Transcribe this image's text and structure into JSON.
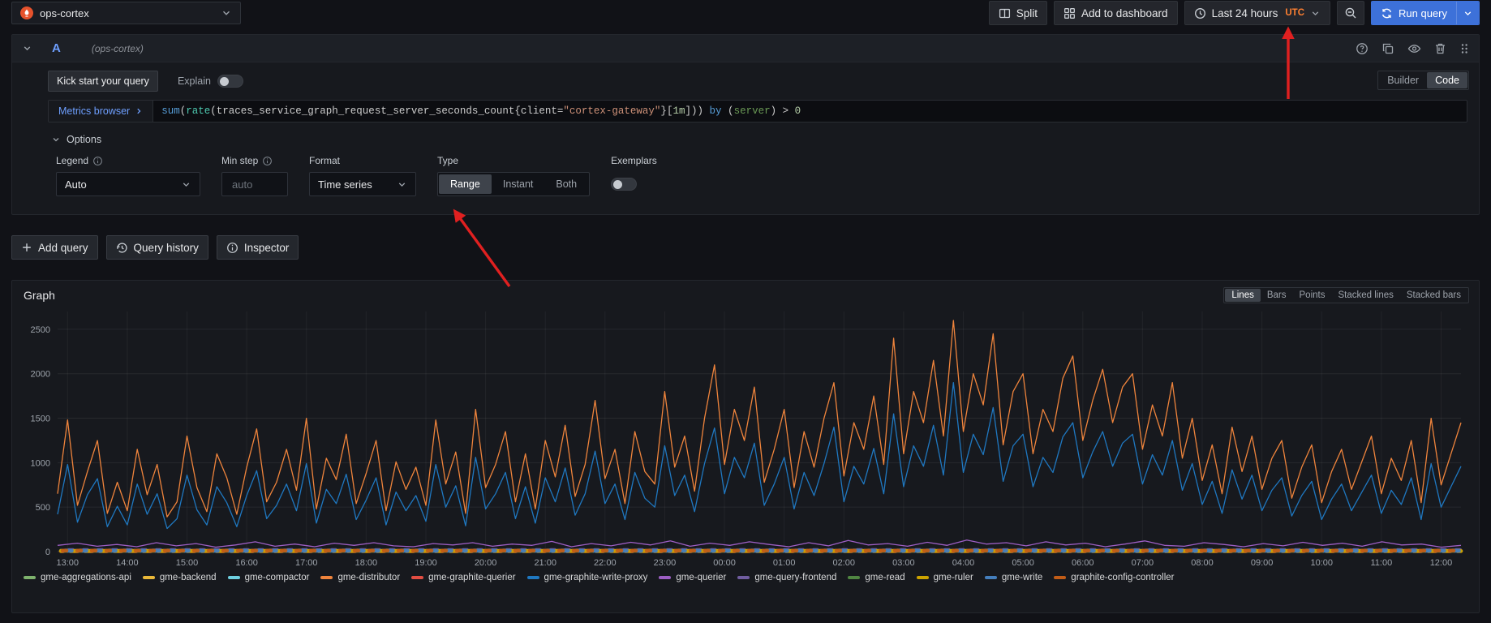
{
  "topbar": {
    "datasource": "ops-cortex",
    "split_label": "Split",
    "add_to_dashboard_label": "Add to dashboard",
    "time_range": "Last 24 hours",
    "timezone": "UTC",
    "run_query_label": "Run query"
  },
  "query_editor": {
    "ref_id": "A",
    "datasource_hint": "(ops-cortex)",
    "kick_start_label": "Kick start your query",
    "explain_label": "Explain",
    "builder_label": "Builder",
    "code_label": "Code",
    "metrics_browser_label": "Metrics browser",
    "query_tokens": [
      {
        "t": "sum",
        "c": "fn"
      },
      {
        "t": "(",
        "c": "p"
      },
      {
        "t": "rate",
        "c": "fn2"
      },
      {
        "t": "(",
        "c": "p"
      },
      {
        "t": "traces_service_graph_request_server_seconds_count",
        "c": "p"
      },
      {
        "t": "{",
        "c": "p"
      },
      {
        "t": "client",
        "c": "p"
      },
      {
        "t": "=",
        "c": "p"
      },
      {
        "t": "\"cortex-gateway\"",
        "c": "str"
      },
      {
        "t": "}",
        "c": "p"
      },
      {
        "t": "[",
        "c": "p"
      },
      {
        "t": "1m",
        "c": "num"
      },
      {
        "t": "]",
        "c": "p"
      },
      {
        "t": "))",
        "c": "p"
      },
      {
        "t": " ",
        "c": "p"
      },
      {
        "t": "by",
        "c": "fn"
      },
      {
        "t": " ",
        "c": "p"
      },
      {
        "t": "(",
        "c": "p"
      },
      {
        "t": "server",
        "c": "lbl"
      },
      {
        "t": ")",
        "c": "p"
      },
      {
        "t": " > ",
        "c": "p"
      },
      {
        "t": "0",
        "c": "num"
      }
    ],
    "options": {
      "title": "Options",
      "legend_label": "Legend",
      "legend_value": "Auto",
      "min_step_label": "Min step",
      "min_step_placeholder": "auto",
      "format_label": "Format",
      "format_value": "Time series",
      "type_label": "Type",
      "type_options": [
        "Range",
        "Instant",
        "Both"
      ],
      "type_selected": "Range",
      "exemplars_label": "Exemplars"
    }
  },
  "actions": {
    "add_query_label": "Add query",
    "query_history_label": "Query history",
    "inspector_label": "Inspector"
  },
  "graph_panel": {
    "title": "Graph",
    "display_modes": [
      "Lines",
      "Bars",
      "Points",
      "Stacked lines",
      "Stacked bars"
    ],
    "selected_mode": "Lines"
  },
  "icons": [
    "prometheus-logo",
    "split",
    "apps-grid",
    "clock",
    "chevron-down",
    "zoom-out",
    "sync",
    "help-circle",
    "copy",
    "eye",
    "trash",
    "drag-handle",
    "plus",
    "history",
    "info-circle"
  ],
  "chart_data": {
    "type": "line",
    "title": "Graph",
    "grid": true,
    "legend_position": "bottom",
    "ylim": [
      0,
      2700
    ],
    "yticks": [
      0,
      500,
      1000,
      1500,
      2000,
      2500
    ],
    "xticks": [
      "13:00",
      "14:00",
      "15:00",
      "16:00",
      "17:00",
      "18:00",
      "19:00",
      "20:00",
      "21:00",
      "22:00",
      "23:00",
      "00:00",
      "01:00",
      "02:00",
      "03:00",
      "04:00",
      "05:00",
      "06:00",
      "07:00",
      "08:00",
      "09:00",
      "10:00",
      "11:00",
      "12:00"
    ],
    "x_note": "24h window, points every 10 min (main series) starting 12:50",
    "series": [
      {
        "name": "gme-distributor",
        "color": "#EF843C",
        "values": [
          650,
          1480,
          520,
          900,
          1250,
          430,
          780,
          460,
          1150,
          640,
          980,
          390,
          560,
          1300,
          720,
          450,
          1100,
          830,
          420,
          950,
          1380,
          560,
          780,
          1150,
          690,
          1500,
          480,
          1050,
          810,
          1320,
          540,
          880,
          1250,
          460,
          1010,
          700,
          950,
          520,
          1480,
          760,
          1120,
          430,
          1600,
          720,
          980,
          1350,
          560,
          1100,
          480,
          1250,
          840,
          1420,
          620,
          980,
          1700,
          820,
          1150,
          540,
          1350,
          900,
          760,
          1800,
          950,
          1300,
          680,
          1500,
          2100,
          980,
          1600,
          1250,
          1850,
          780,
          1150,
          1600,
          720,
          1350,
          950,
          1500,
          1900,
          850,
          1450,
          1150,
          1750,
          980,
          2400,
          1100,
          1800,
          1450,
          2150,
          1300,
          2600,
          1350,
          2000,
          1650,
          2450,
          1200,
          1800,
          2000,
          1100,
          1600,
          1350,
          1950,
          2200,
          1250,
          1700,
          2050,
          1450,
          1850,
          2000,
          1150,
          1650,
          1300,
          1900,
          1050,
          1500,
          800,
          1200,
          650,
          1400,
          900,
          1300,
          700,
          1050,
          1250,
          600,
          950,
          1200,
          550,
          900,
          1150,
          700,
          1000,
          1300,
          650,
          1050,
          800,
          1250,
          550,
          1500,
          750,
          1100,
          1450
        ]
      },
      {
        "name": "gme-graphite-write-proxy",
        "color": "#1F78C1",
        "values": [
          420,
          980,
          330,
          640,
          820,
          280,
          510,
          300,
          760,
          420,
          650,
          260,
          370,
          860,
          470,
          300,
          730,
          550,
          280,
          630,
          910,
          370,
          520,
          760,
          460,
          990,
          320,
          700,
          540,
          870,
          360,
          580,
          830,
          300,
          670,
          460,
          630,
          340,
          980,
          500,
          740,
          290,
          1060,
          480,
          650,
          890,
          370,
          730,
          320,
          830,
          560,
          940,
          410,
          650,
          1130,
          540,
          760,
          360,
          890,
          600,
          500,
          1190,
          630,
          860,
          450,
          990,
          1390,
          650,
          1060,
          830,
          1220,
          520,
          760,
          1060,
          480,
          890,
          630,
          990,
          1400,
          560,
          960,
          760,
          1160,
          650,
          1550,
          730,
          1190,
          960,
          1420,
          860,
          1900,
          890,
          1320,
          1090,
          1620,
          790,
          1190,
          1320,
          730,
          1060,
          890,
          1290,
          1450,
          830,
          1120,
          1350,
          960,
          1220,
          1320,
          760,
          1090,
          860,
          1250,
          690,
          990,
          530,
          790,
          430,
          920,
          590,
          860,
          460,
          690,
          830,
          400,
          630,
          790,
          360,
          590,
          760,
          460,
          660,
          860,
          430,
          690,
          530,
          830,
          360,
          990,
          500,
          730,
          960
        ]
      },
      {
        "name": "gme-querier",
        "color": "#9D5FC4",
        "values": [
          70,
          95,
          60,
          80,
          55,
          100,
          65,
          90,
          50,
          75,
          110,
          60,
          85,
          55,
          95,
          70,
          100,
          65,
          55,
          90,
          75,
          100,
          60,
          85,
          70,
          115,
          55,
          90,
          65,
          105,
          75,
          120,
          60,
          95,
          70,
          110,
          80,
          55,
          100,
          65,
          125,
          75,
          90,
          60,
          105,
          70,
          130,
          85,
          100,
          65,
          110,
          75,
          95,
          55,
          85,
          120,
          70,
          60,
          100,
          80,
          55,
          90,
          65,
          105,
          70,
          95,
          60,
          110,
          75,
          85,
          50,
          70
        ]
      }
    ],
    "baseline_series": [
      {
        "name": "gme-aggregations-api",
        "color": "#7EB26D",
        "value": 10
      },
      {
        "name": "gme-backend",
        "color": "#EAB839",
        "value": 6
      },
      {
        "name": "gme-compactor",
        "color": "#6ED0E0",
        "value": 12
      },
      {
        "name": "gme-graphite-querier",
        "color": "#E24D42",
        "value": 5
      },
      {
        "name": "gme-query-frontend",
        "color": "#705DA0",
        "value": 18
      },
      {
        "name": "gme-read",
        "color": "#508642",
        "value": 8
      },
      {
        "name": "gme-ruler",
        "color": "#CCA300",
        "value": 7
      },
      {
        "name": "gme-write",
        "color": "#447EBC",
        "value": 9
      },
      {
        "name": "graphite-config-controller",
        "color": "#C15C17",
        "value": 11
      }
    ],
    "legend": [
      {
        "name": "gme-aggregations-api",
        "color": "#7EB26D"
      },
      {
        "name": "gme-backend",
        "color": "#EAB839"
      },
      {
        "name": "gme-compactor",
        "color": "#6ED0E0"
      },
      {
        "name": "gme-distributor",
        "color": "#EF843C"
      },
      {
        "name": "gme-graphite-querier",
        "color": "#E24D42"
      },
      {
        "name": "gme-graphite-write-proxy",
        "color": "#1F78C1"
      },
      {
        "name": "gme-querier",
        "color": "#9D5FC4"
      },
      {
        "name": "gme-query-frontend",
        "color": "#705DA0"
      },
      {
        "name": "gme-read",
        "color": "#508642"
      },
      {
        "name": "gme-ruler",
        "color": "#CCA300"
      },
      {
        "name": "gme-write",
        "color": "#447EBC"
      },
      {
        "name": "graphite-config-controller",
        "color": "#C15C17"
      }
    ]
  }
}
